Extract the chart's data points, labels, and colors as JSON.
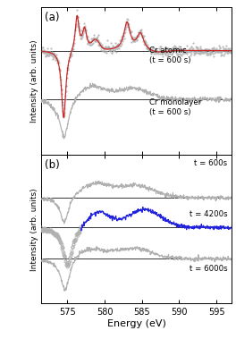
{
  "energy_min": 571.5,
  "energy_max": 597,
  "xlabel": "Energy (eV)",
  "ylabel": "Intensity (arb. units)",
  "panel_a_label": "(a)",
  "panel_b_label": "(b)",
  "label_cr_atomic": "Cr atomic\n(t = 600 s)",
  "label_cr_monolayer": "Cr monolayer\n(t = 600 s)",
  "label_t600": "t = 600s",
  "label_t4200": "t = 4200s",
  "label_t6000": "t = 6000s",
  "color_red": "#cc2222",
  "color_blue": "#2222dd",
  "color_lightgray": "#b0b0b0",
  "color_darkgray": "#888888",
  "xticks": [
    575,
    580,
    585,
    590,
    595
  ],
  "xtick_labels": [
    "575",
    "580",
    "585",
    "590",
    "595"
  ]
}
